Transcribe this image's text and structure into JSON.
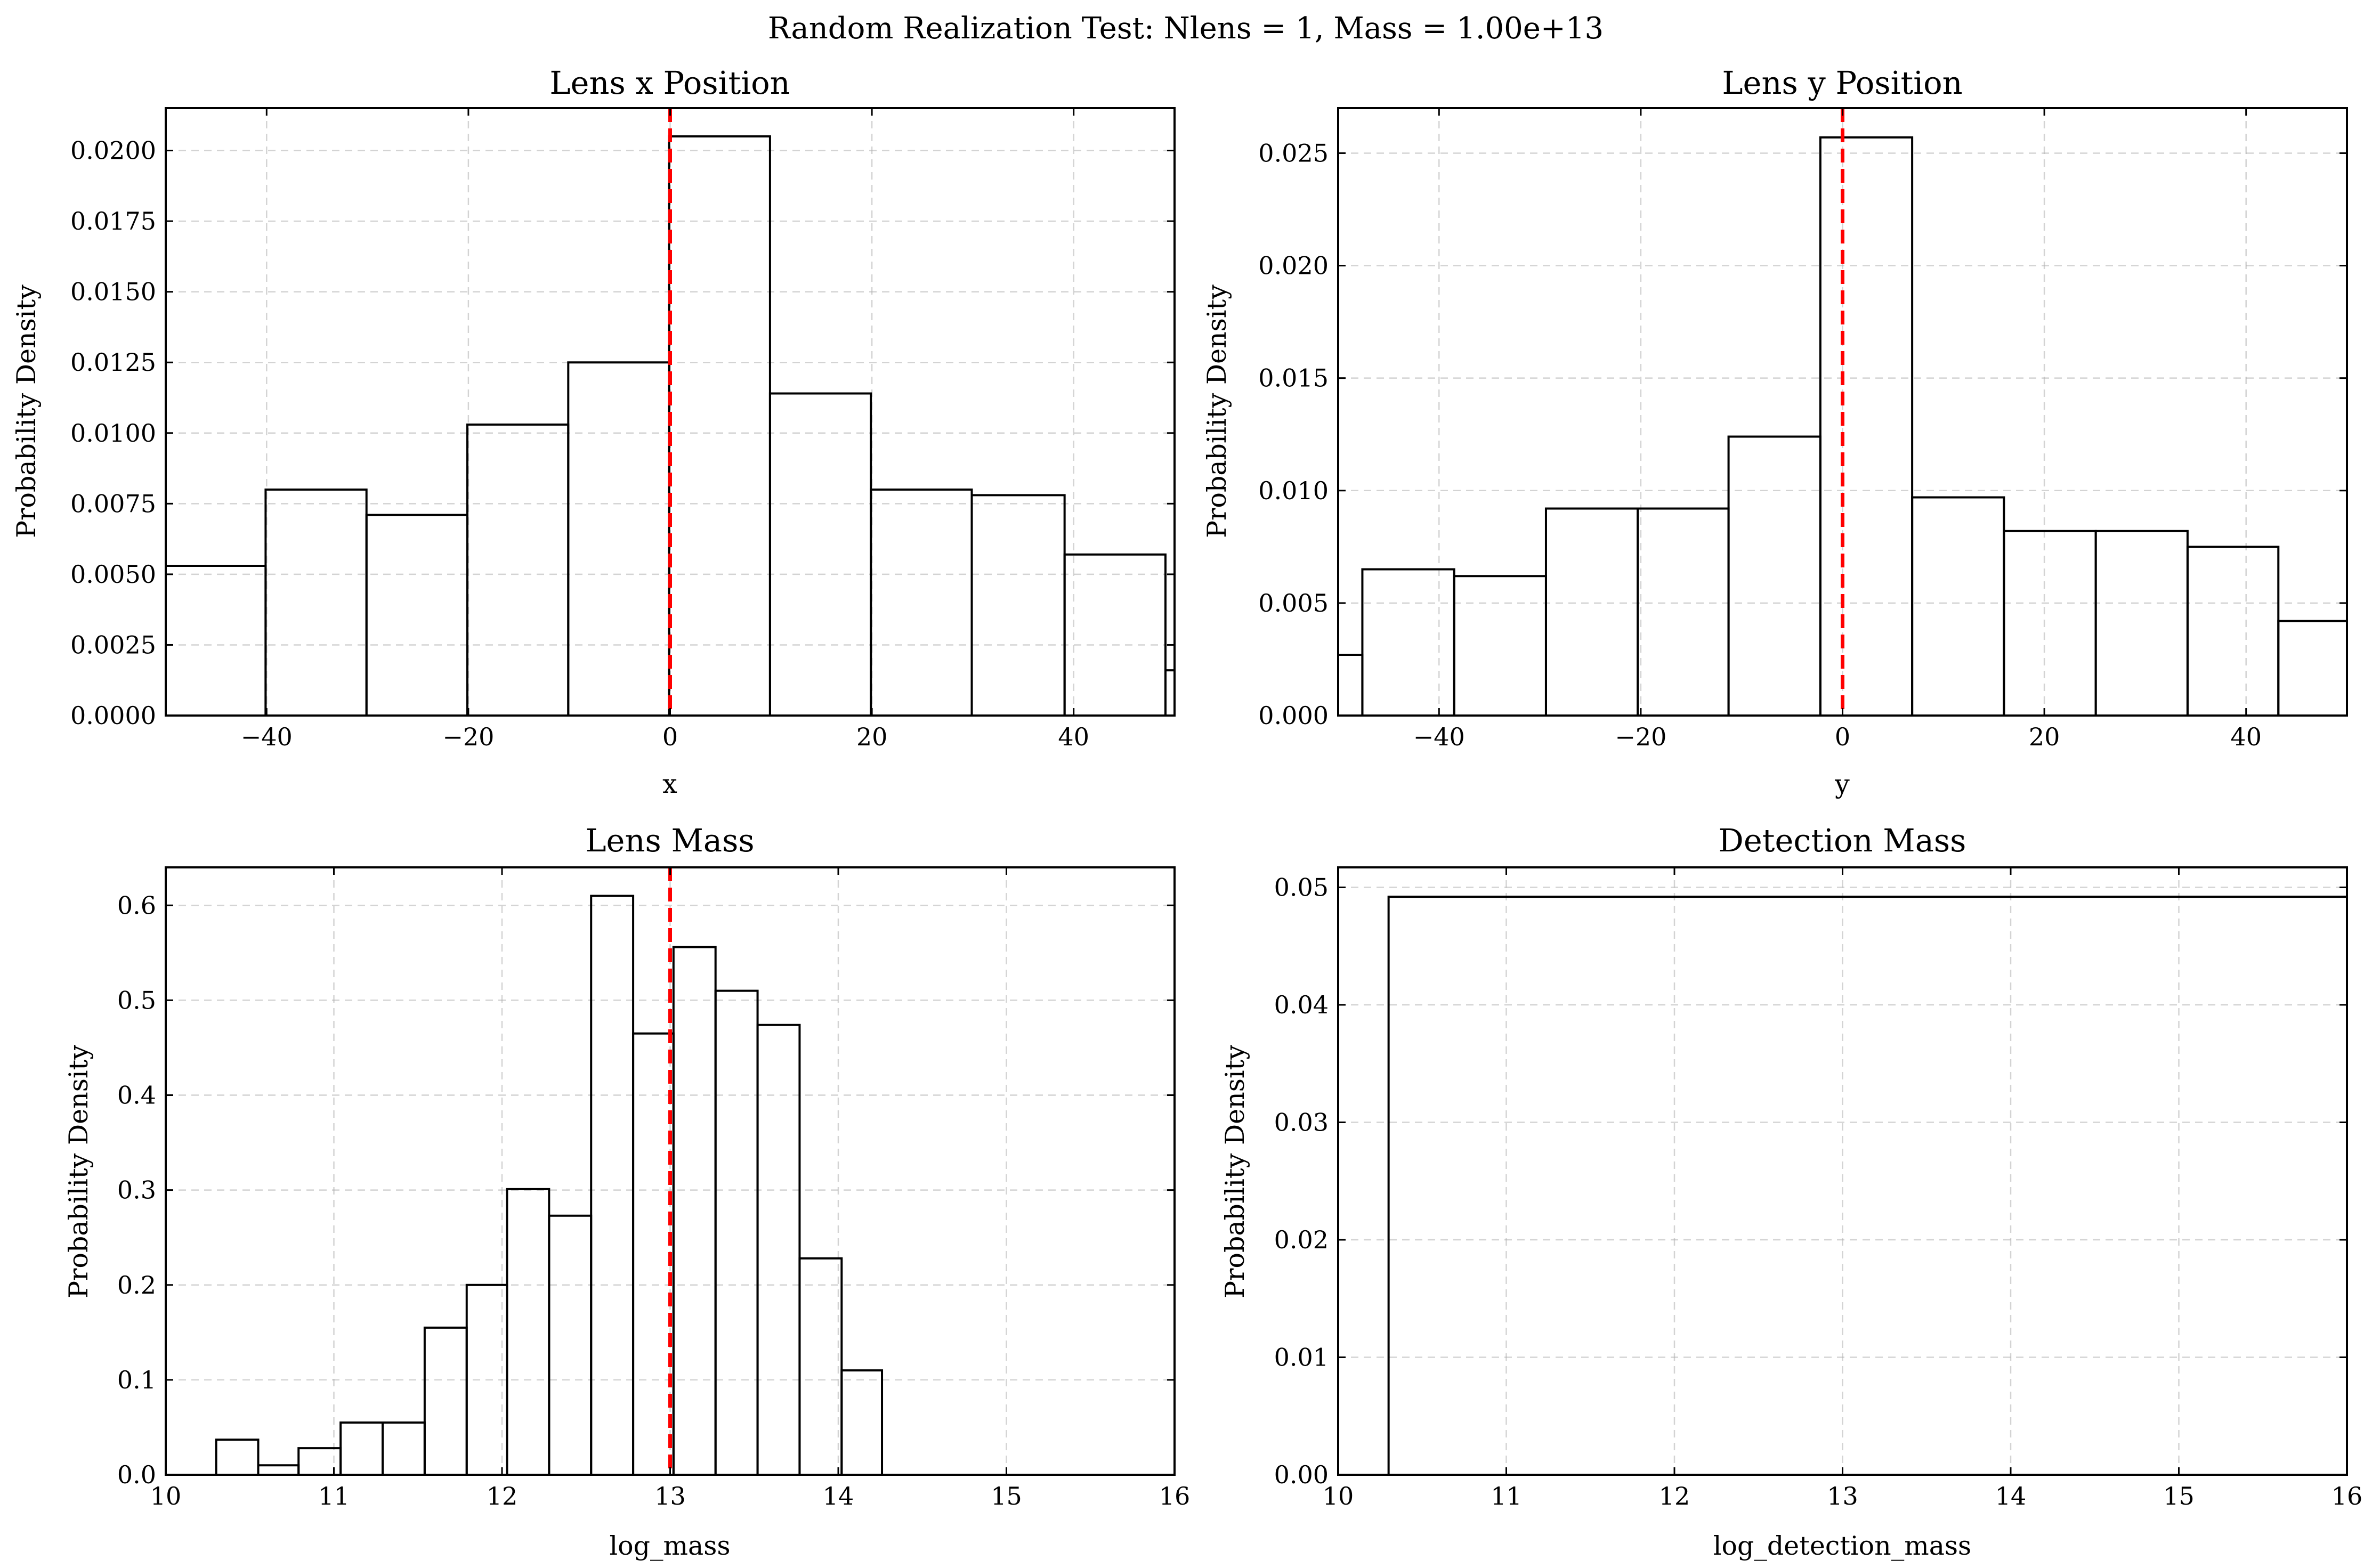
{
  "figure": {
    "title": "Random Realization Test: Nlens = 1, Mass = 1.00e+13"
  },
  "colors": {
    "histogram": "#000000",
    "reference_line": "#ff0000",
    "grid": "#b0b0b0"
  },
  "chart_data": [
    {
      "type": "histogram",
      "title": "Lens x Position",
      "xlabel": "x",
      "ylabel": "Probability Density",
      "xlim": [
        -50,
        50
      ],
      "ylim": [
        0,
        0.0215
      ],
      "xticks": [
        -40,
        -20,
        0,
        20,
        40
      ],
      "xtick_labels": [
        "−40",
        "−20",
        "0",
        "20",
        "40"
      ],
      "yticks": [
        0,
        0.0025,
        0.005,
        0.0075,
        0.01,
        0.0125,
        0.015,
        0.0175,
        0.02
      ],
      "ytick_labels": [
        "0.0000",
        "0.0025",
        "0.0050",
        "0.0075",
        "0.0100",
        "0.0125",
        "0.0150",
        "0.0175",
        "0.0200"
      ],
      "grid": true,
      "reference_line_x": 0,
      "bin_edges": [
        -50.2,
        -40.1,
        -30.1,
        -20.1,
        -10.1,
        -0.1,
        9.9,
        19.9,
        29.9,
        39.1,
        49.1,
        50
      ],
      "values": [
        0.0053,
        0.008,
        0.0071,
        0.0103,
        0.0125,
        0.0205,
        0.0114,
        0.008,
        0.0078,
        0.0057,
        0.0016
      ]
    },
    {
      "type": "histogram",
      "title": "Lens y Position",
      "xlabel": "y",
      "ylabel": "Probability Density",
      "xlim": [
        -50,
        50
      ],
      "ylim": [
        0,
        0.027
      ],
      "xticks": [
        -40,
        -20,
        0,
        20,
        40
      ],
      "xtick_labels": [
        "−40",
        "−20",
        "0",
        "20",
        "40"
      ],
      "yticks": [
        0,
        0.005,
        0.01,
        0.015,
        0.02,
        0.025
      ],
      "ytick_labels": [
        "0.000",
        "0.005",
        "0.010",
        "0.015",
        "0.020",
        "0.025"
      ],
      "grid": true,
      "reference_line_x": 0,
      "bin_edges": [
        -50,
        -47.6,
        -38.5,
        -29.4,
        -20.3,
        -11.3,
        -2.2,
        6.9,
        16.0,
        25.1,
        34.2,
        43.2,
        50
      ],
      "values": [
        0.0027,
        0.0065,
        0.0062,
        0.0092,
        0.0092,
        0.0124,
        0.0257,
        0.0097,
        0.0082,
        0.0082,
        0.0075,
        0.0042
      ]
    },
    {
      "type": "histogram",
      "title": "Lens Mass",
      "xlabel": "log_mass",
      "ylabel": "Probability Density",
      "xlim": [
        10,
        16
      ],
      "ylim": [
        0,
        0.64
      ],
      "xticks": [
        10,
        11,
        12,
        13,
        14,
        15,
        16
      ],
      "xtick_labels": [
        "10",
        "11",
        "12",
        "13",
        "14",
        "15",
        "16"
      ],
      "yticks": [
        0,
        0.1,
        0.2,
        0.3,
        0.4,
        0.5,
        0.6
      ],
      "ytick_labels": [
        "0.0",
        "0.1",
        "0.2",
        "0.3",
        "0.4",
        "0.5",
        "0.6"
      ],
      "grid": true,
      "reference_line_x": 13,
      "bin_edges": [
        10.3,
        10.55,
        10.79,
        11.04,
        11.29,
        11.54,
        11.79,
        12.03,
        12.28,
        12.53,
        12.78,
        13.02,
        13.27,
        13.52,
        13.77,
        14.02,
        14.26
      ],
      "values": [
        0.037,
        0.01,
        0.028,
        0.055,
        0.055,
        0.155,
        0.2,
        0.301,
        0.273,
        0.61,
        0.465,
        0.556,
        0.51,
        0.474,
        0.228,
        0.11
      ]
    },
    {
      "type": "histogram",
      "title": "Detection Mass",
      "xlabel": "log_detection_mass",
      "ylabel": "Probability Density",
      "xlim": [
        10,
        16
      ],
      "ylim": [
        0,
        0.0517
      ],
      "xticks": [
        10,
        11,
        12,
        13,
        14,
        15,
        16
      ],
      "xtick_labels": [
        "10",
        "11",
        "12",
        "13",
        "14",
        "15",
        "16"
      ],
      "yticks": [
        0,
        0.01,
        0.02,
        0.03,
        0.04,
        0.05
      ],
      "ytick_labels": [
        "0.00",
        "0.01",
        "0.02",
        "0.03",
        "0.04",
        "0.05"
      ],
      "grid": true,
      "reference_line_x": null,
      "bin_edges": [
        10.3,
        16.0
      ],
      "values": [
        0.0492
      ]
    }
  ]
}
